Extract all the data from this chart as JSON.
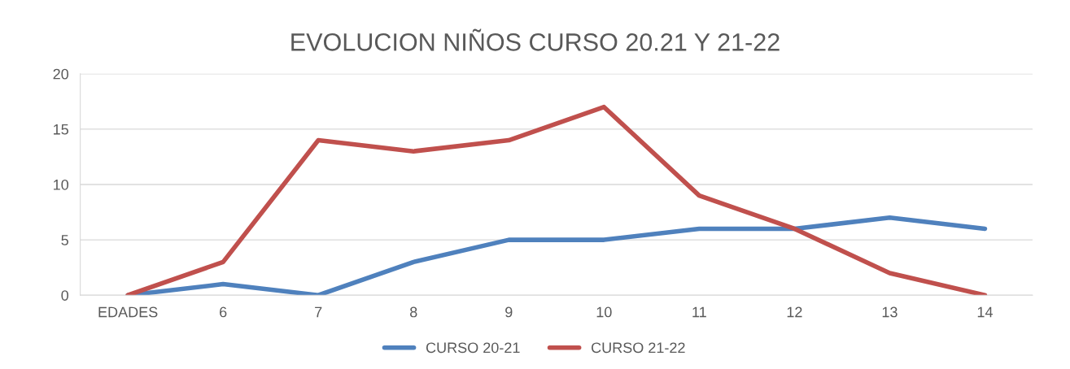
{
  "chart_data": {
    "type": "line",
    "title": "EVOLUCION NIÑOS CURSO 20.21 Y 21-22",
    "categories": [
      "EDADES",
      "6",
      "7",
      "8",
      "9",
      "10",
      "11",
      "12",
      "13",
      "14"
    ],
    "series": [
      {
        "name": "CURSO 20-21",
        "color": "#4f81bd",
        "values": [
          0,
          1,
          0,
          3,
          5,
          5,
          6,
          6,
          7,
          6
        ]
      },
      {
        "name": "CURSO 21-22",
        "color": "#c0504d",
        "values": [
          0,
          3,
          14,
          13,
          14,
          17,
          9,
          6,
          2,
          0
        ]
      }
    ],
    "ylim": [
      0,
      20
    ],
    "yticks": [
      0,
      5,
      10,
      15,
      20
    ],
    "grid": "y",
    "legend": "bottom",
    "marker": "none",
    "line_style": "solid"
  }
}
